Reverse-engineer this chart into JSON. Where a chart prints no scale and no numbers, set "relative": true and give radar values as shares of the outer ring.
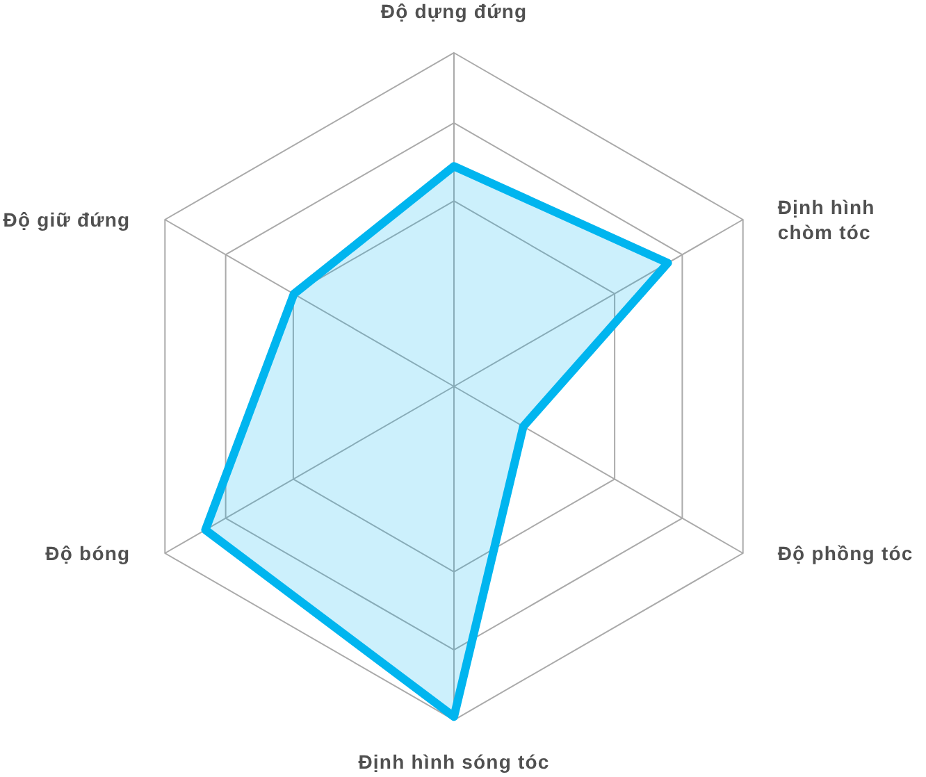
{
  "chart_data": {
    "type": "radar",
    "categories": [
      "Độ dựng đứng",
      "Định hình chòm tóc",
      "Độ phồng tóc",
      "Định hình sóng tóc",
      "Độ bóng",
      "Độ giữ đứng"
    ],
    "relative": true,
    "grid": true,
    "marker": "none",
    "series": [
      {
        "color": "#00b5ef",
        "values": [
          0.66,
          0.74,
          0.24,
          0.99,
          0.86,
          0.554
        ]
      }
    ]
  }
}
